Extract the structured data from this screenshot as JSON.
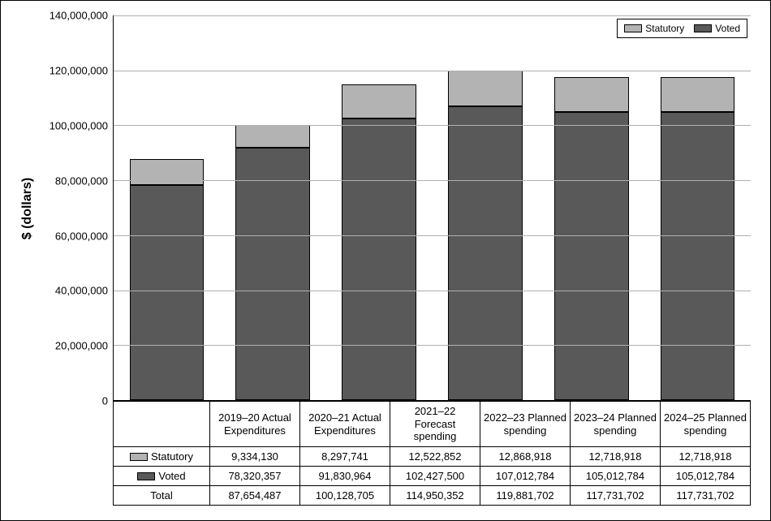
{
  "chart": {
    "type": "stacked-bar",
    "ylabel": "$ (dollars)",
    "ylabel_fontsize": 16,
    "tick_fontsize": 13,
    "ylim": [
      0,
      140000000
    ],
    "ytick_step": 20000000,
    "yticks": [
      0,
      20000000,
      40000000,
      60000000,
      80000000,
      100000000,
      120000000,
      140000000
    ],
    "ytick_labels": [
      "0",
      "20,000,000",
      "40,000,000",
      "60,000,000",
      "80,000,000",
      "100,000,000",
      "120,000,000",
      "140,000,000"
    ],
    "categories": [
      "2019–20 Actual Expenditures",
      "2020–21 Actual Expenditures",
      "2021–22 Forecast spending",
      "2022–23 Planned spending",
      "2023–24 Planned spending",
      "2024–25 Planned spending"
    ],
    "series": [
      {
        "name": "Statutory",
        "color": "#b3b3b3",
        "values": [
          9334130,
          8297741,
          12522852,
          12868918,
          12718918,
          12718918
        ]
      },
      {
        "name": "Voted",
        "color": "#595959",
        "values": [
          78320357,
          91830964,
          102427500,
          107012784,
          105012784,
          105012784
        ]
      }
    ],
    "totals_label": "Total",
    "totals": [
      87654487,
      100128705,
      114950352,
      119881702,
      117731702,
      117731702
    ],
    "bar_width": 0.7,
    "background_color": "#ffffff",
    "grid_color": "#b0b0b0",
    "axis_color": "#000000",
    "border_color": "#000000",
    "table": {
      "statutory_formatted": [
        "9,334,130",
        "8,297,741",
        "12,522,852",
        "12,868,918",
        "12,718,918",
        "12,718,918"
      ],
      "voted_formatted": [
        "78,320,357",
        "91,830,964",
        "102,427,500",
        "107,012,784",
        "105,012,784",
        "105,012,784"
      ],
      "total_formatted": [
        "87,654,487",
        "100,128,705",
        "114,950,352",
        "119,881,702",
        "117,731,702",
        "117,731,702"
      ]
    }
  }
}
